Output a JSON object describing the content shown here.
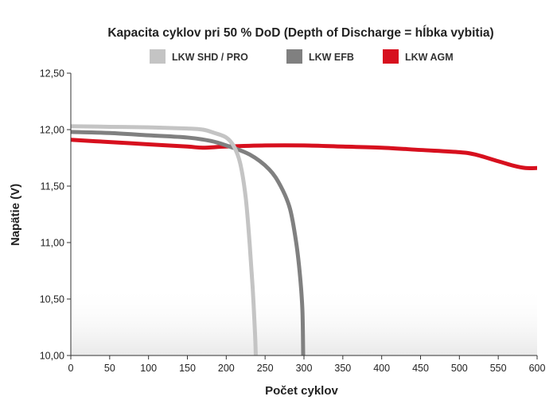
{
  "chart_data": {
    "type": "line",
    "title": "Kapacita cyklov pri 50 % DoD (Depth of Discharge = hĺbka vybitia)",
    "xlabel": "Počet cyklov",
    "ylabel": "Napätie (V)",
    "xlim": [
      0,
      600
    ],
    "ylim": [
      10.0,
      12.5
    ],
    "x_ticks": [
      0,
      50,
      100,
      150,
      200,
      250,
      300,
      350,
      400,
      450,
      500,
      550,
      600
    ],
    "x_tick_labels": [
      "0",
      "50",
      "100",
      "150",
      "200",
      "250",
      "300",
      "350",
      "400",
      "450",
      "500",
      "550",
      "600"
    ],
    "y_ticks": [
      10.0,
      10.5,
      11.0,
      11.5,
      12.0,
      12.5
    ],
    "y_tick_labels": [
      "10,00",
      "10,50",
      "11,00",
      "11,50",
      "12,00",
      "12,50"
    ],
    "grid": false,
    "legend_position": "top",
    "series": [
      {
        "name": "LKW SHD / PRO",
        "color": "#c4c4c4",
        "points": [
          [
            0,
            12.03
          ],
          [
            50,
            12.025
          ],
          [
            100,
            12.02
          ],
          [
            150,
            12.01
          ],
          [
            170,
            12.0
          ],
          [
            185,
            11.97
          ],
          [
            200,
            11.93
          ],
          [
            210,
            11.85
          ],
          [
            218,
            11.7
          ],
          [
            225,
            11.4
          ],
          [
            230,
            11.0
          ],
          [
            234,
            10.6
          ],
          [
            237,
            10.2
          ],
          [
            238,
            10.0
          ]
        ]
      },
      {
        "name": "LKW EFB",
        "color": "#808080",
        "points": [
          [
            0,
            11.98
          ],
          [
            50,
            11.97
          ],
          [
            100,
            11.95
          ],
          [
            150,
            11.93
          ],
          [
            180,
            11.9
          ],
          [
            200,
            11.86
          ],
          [
            230,
            11.78
          ],
          [
            255,
            11.65
          ],
          [
            270,
            11.5
          ],
          [
            282,
            11.3
          ],
          [
            290,
            11.0
          ],
          [
            295,
            10.7
          ],
          [
            298,
            10.4
          ],
          [
            299,
            10.0
          ]
        ]
      },
      {
        "name": "LKW AGM",
        "color": "#d7101e",
        "points": [
          [
            0,
            11.91
          ],
          [
            50,
            11.89
          ],
          [
            100,
            11.87
          ],
          [
            150,
            11.85
          ],
          [
            170,
            11.84
          ],
          [
            200,
            11.85
          ],
          [
            250,
            11.86
          ],
          [
            300,
            11.86
          ],
          [
            350,
            11.85
          ],
          [
            400,
            11.84
          ],
          [
            450,
            11.82
          ],
          [
            500,
            11.8
          ],
          [
            520,
            11.78
          ],
          [
            550,
            11.72
          ],
          [
            570,
            11.68
          ],
          [
            585,
            11.66
          ],
          [
            600,
            11.66
          ]
        ]
      }
    ]
  }
}
